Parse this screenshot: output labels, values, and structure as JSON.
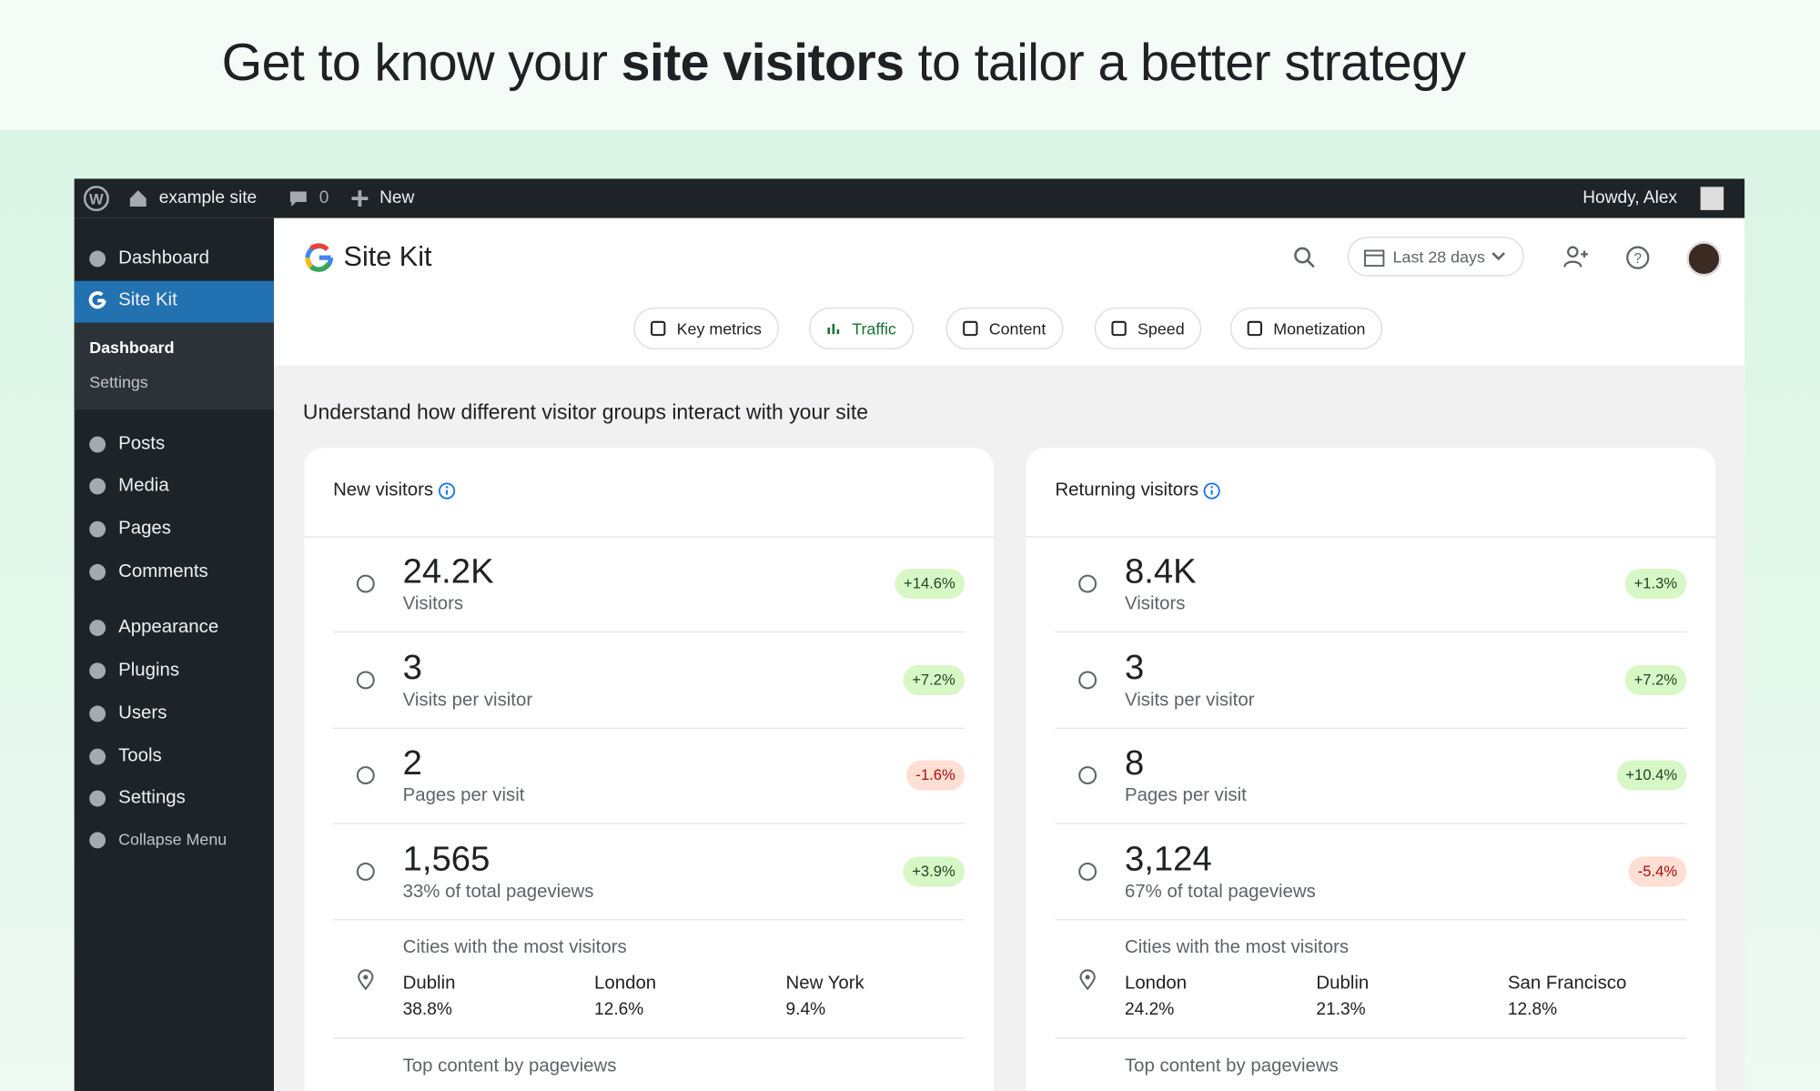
{
  "headline": {
    "prefix": "Get to know your ",
    "bold": "site visitors",
    "suffix": " to tailor a better strategy"
  },
  "admin_bar": {
    "site": "example site",
    "comments": "0",
    "new": "New",
    "greeting": "Howdy, Alex"
  },
  "sidebar": {
    "items": [
      "Dashboard",
      "Site Kit",
      "Dashboard",
      "Settings",
      "Posts",
      "Media",
      "Pages",
      "Comments",
      "Appearance",
      "Plugins",
      "Users",
      "Tools",
      "Settings",
      "Collapse Menu"
    ]
  },
  "header": {
    "product": "Site Kit",
    "date_range": "Last 28 days"
  },
  "tabs": [
    "Key metrics",
    "Traffic",
    "Content",
    "Speed",
    "Monetization"
  ],
  "section_title": "Understand how different visitor groups interact with your site",
  "cards": [
    {
      "title": "New visitors",
      "metrics": [
        {
          "value": "24.2K",
          "label": "Visitors",
          "change": "+14.6%"
        },
        {
          "value": "3",
          "label": "Visits per visitor",
          "change": "+7.2%"
        },
        {
          "value": "2",
          "label": "Pages per visit",
          "change": "-1.6%"
        },
        {
          "value": "1,565",
          "label": "33% of total pageviews",
          "change": "+3.9%"
        }
      ],
      "cities_title": "Cities with the most visitors",
      "cities": [
        {
          "name": "Dublin",
          "share": "38.8%"
        },
        {
          "name": "London",
          "share": "12.6%"
        },
        {
          "name": "New York",
          "share": "9.4%"
        }
      ],
      "top_content_title": "Top content by pageviews"
    },
    {
      "title": "Returning visitors",
      "metrics": [
        {
          "value": "8.4K",
          "label": "Visitors",
          "change": "+1.3%"
        },
        {
          "value": "3",
          "label": "Visits per visitor",
          "change": "+7.2%"
        },
        {
          "value": "8",
          "label": "Pages per visit",
          "change": "+10.4%"
        },
        {
          "value": "3,124",
          "label": "67% of total pageviews",
          "change": "-5.4%"
        }
      ],
      "cities_title": "Cities with the most visitors",
      "cities": [
        {
          "name": "London",
          "share": "24.2%"
        },
        {
          "name": "Dublin",
          "share": "21.3%"
        },
        {
          "name": "San Francisco",
          "share": "12.8%"
        }
      ],
      "top_content_title": "Top content by pageviews"
    }
  ]
}
